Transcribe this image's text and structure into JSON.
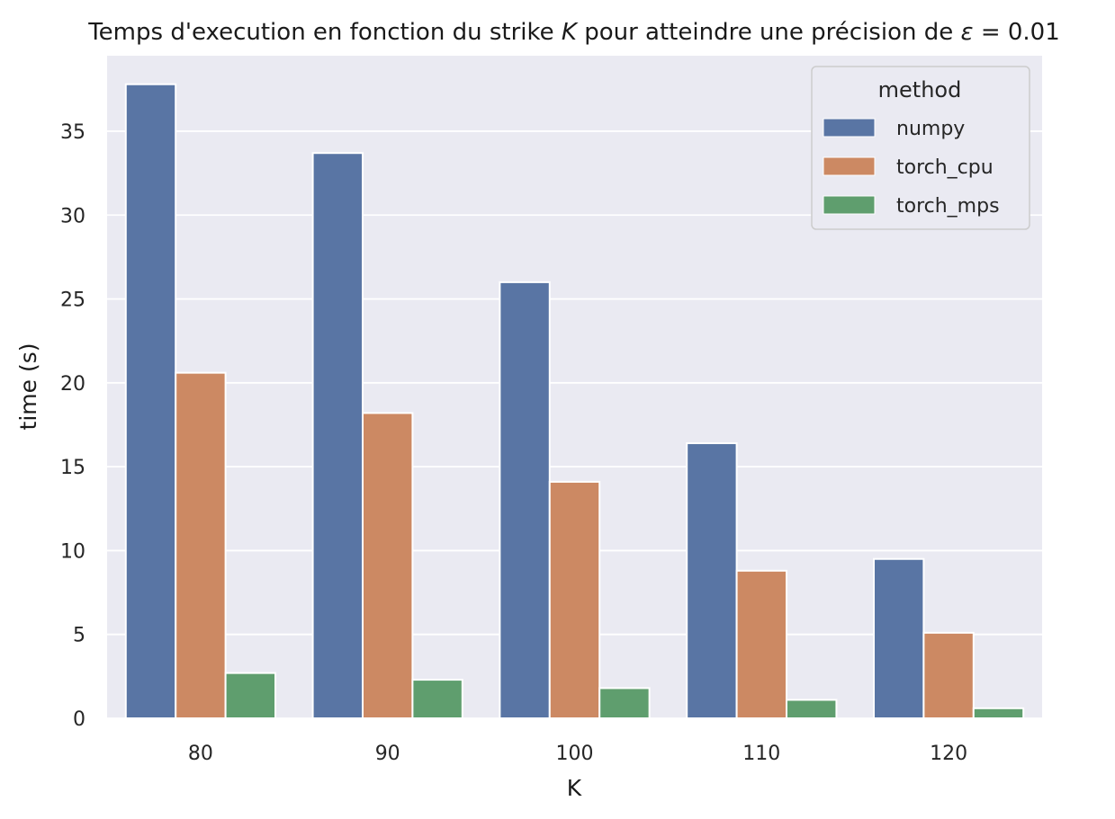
{
  "chart_data": {
    "type": "bar",
    "title_prefix": "Temps d'execution en fonction du strike ",
    "title_var": "K",
    "title_middle": " pour atteindre une précision de ",
    "title_eps": "ε",
    "title_suffix": " = 0.01",
    "xlabel": "K",
    "ylabel": "time (s)",
    "categories": [
      "80",
      "90",
      "100",
      "110",
      "120"
    ],
    "ylim": [
      0,
      39.5
    ],
    "yticks": [
      0,
      5,
      10,
      15,
      20,
      25,
      30,
      35
    ],
    "grid": true,
    "legend": {
      "title": "method",
      "placement": "top-right"
    },
    "series": [
      {
        "name": "numpy",
        "color": "#5975a4",
        "values": [
          37.8,
          33.7,
          26.0,
          16.4,
          9.5
        ]
      },
      {
        "name": "torch_cpu",
        "color": "#cc8963",
        "values": [
          20.6,
          18.2,
          14.1,
          8.8,
          5.1
        ]
      },
      {
        "name": "torch_mps",
        "color": "#5f9e6e",
        "values": [
          2.7,
          2.3,
          1.8,
          1.1,
          0.6
        ]
      }
    ],
    "colors": {
      "plot_bg": "#eaeaf2",
      "grid": "#ffffff"
    }
  }
}
